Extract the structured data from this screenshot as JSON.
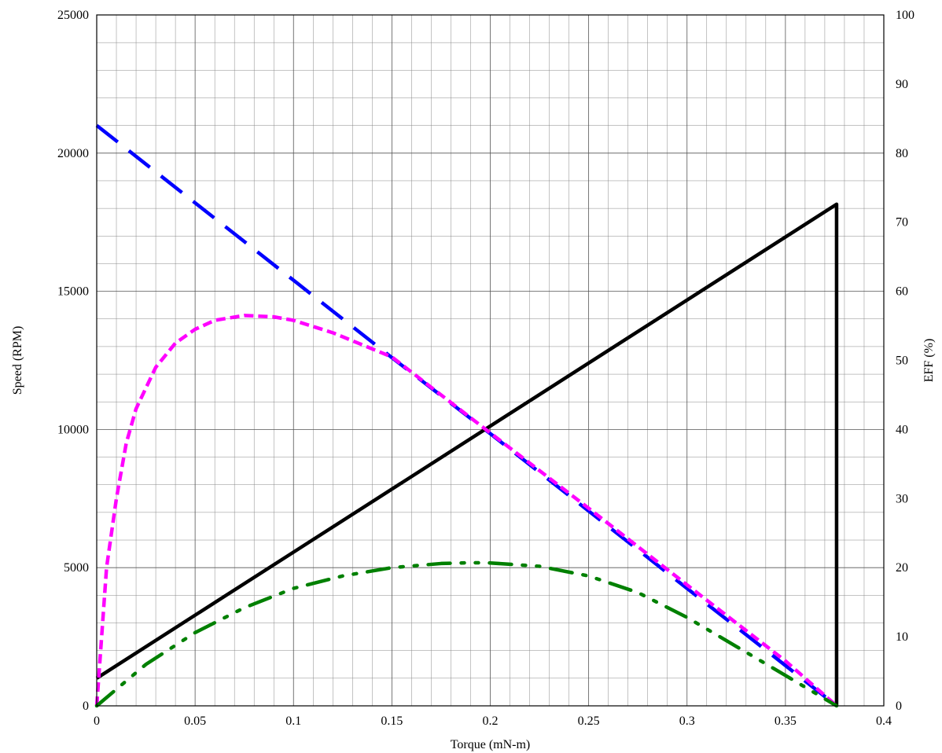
{
  "chart_data": {
    "type": "line",
    "title": "",
    "xlabel": "Torque (mN-m)",
    "ylabel": "Speed (RPM)",
    "y2label": "EFF (%)",
    "xlim": [
      0,
      0.4
    ],
    "ylim": [
      0,
      25000
    ],
    "y2lim": [
      0,
      100
    ],
    "xticks": [
      "0",
      "0.05",
      "0.1",
      "0.15",
      "0.2",
      "0.25",
      "0.3",
      "0.35",
      "0.4"
    ],
    "yticks": [
      "0",
      "5000",
      "10000",
      "15000",
      "20000",
      "25000"
    ],
    "y2ticks": [
      "0",
      "10",
      "20",
      "30",
      "40",
      "50",
      "60",
      "70",
      "80",
      "90",
      "100"
    ],
    "grid": true,
    "legend": "none",
    "series": [
      {
        "color": "#0000ff",
        "dash": "long-dash",
        "axis": "left",
        "x": [
          0,
          0.05,
          0.1,
          0.15,
          0.2,
          0.25,
          0.3,
          0.35,
          0.376
        ],
        "values": [
          21000,
          18200,
          15400,
          12600,
          9850,
          7050,
          4250,
          1460,
          0
        ]
      },
      {
        "color": "#000000",
        "dash": "solid",
        "axis": "left",
        "x": [
          0,
          0.376,
          0.376
        ],
        "values": [
          1000,
          18150,
          0
        ]
      },
      {
        "color": "#ff00ff",
        "dash": "short-dash",
        "axis": "right",
        "x": [
          0,
          0.005,
          0.01,
          0.015,
          0.02,
          0.03,
          0.04,
          0.05,
          0.06,
          0.075,
          0.09,
          0.1,
          0.12,
          0.15,
          0.2,
          0.25,
          0.3,
          0.35,
          0.376
        ],
        "values": [
          0,
          20,
          30,
          38,
          43,
          49,
          52.5,
          54.5,
          55.8,
          56.5,
          56.3,
          55.8,
          54,
          50.5,
          39.5,
          28.6,
          17.5,
          6.5,
          0
        ]
      },
      {
        "color": "#008000",
        "dash": "dash-dot",
        "axis": "left",
        "x": [
          0,
          0.025,
          0.05,
          0.075,
          0.1,
          0.125,
          0.15,
          0.175,
          0.19,
          0.2,
          0.225,
          0.25,
          0.275,
          0.3,
          0.325,
          0.35,
          0.376
        ],
        "values": [
          0,
          1500,
          2650,
          3550,
          4250,
          4700,
          5000,
          5150,
          5180,
          5170,
          5050,
          4700,
          4100,
          3200,
          2150,
          1100,
          0
        ]
      }
    ]
  }
}
